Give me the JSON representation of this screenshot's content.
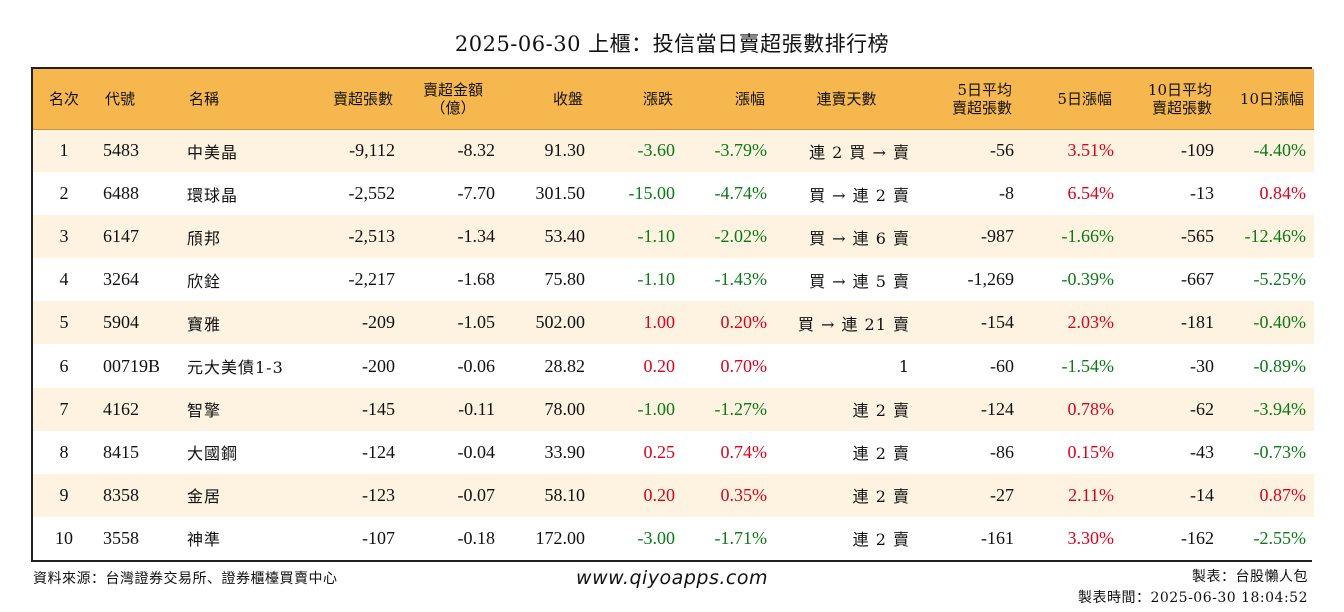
{
  "title": "2025-06-30 上櫃：投信當日賣超張數排行榜",
  "colors": {
    "header_bg": "#f5b74e",
    "row_alt_bg": "#fdf3e0",
    "up": "#e0001b",
    "down": "#0a7a17"
  },
  "headers": {
    "rank": "名次",
    "code": "代號",
    "name": "名稱",
    "net_sell": "賣超張數",
    "amount_line1": "賣超金額",
    "amount_line2": "（億）",
    "close": "收盤",
    "change": "漲跌",
    "pct": "漲幅",
    "streak": "連賣天數",
    "avg5_line1": "5日平均",
    "avg5_line2": "賣超張數",
    "pct5": "5日漲幅",
    "avg10_line1": "10日平均",
    "avg10_line2": "賣超張數",
    "pct10": "10日漲幅"
  },
  "rows": [
    {
      "rank": "1",
      "code": "5483",
      "name": "中美晶",
      "net_sell": "-9,112",
      "amount": "-8.32",
      "close": "91.30",
      "change": "-3.60",
      "pct": "-3.79%",
      "streak": "連 2 買 → 賣",
      "avg5": "-56",
      "pct5": "3.51%",
      "avg10": "-109",
      "pct10": "-4.40%"
    },
    {
      "rank": "2",
      "code": "6488",
      "name": "環球晶",
      "net_sell": "-2,552",
      "amount": "-7.70",
      "close": "301.50",
      "change": "-15.00",
      "pct": "-4.74%",
      "streak": "買 → 連 2 賣",
      "avg5": "-8",
      "pct5": "6.54%",
      "avg10": "-13",
      "pct10": "0.84%"
    },
    {
      "rank": "3",
      "code": "6147",
      "name": "頎邦",
      "net_sell": "-2,513",
      "amount": "-1.34",
      "close": "53.40",
      "change": "-1.10",
      "pct": "-2.02%",
      "streak": "買 → 連 6 賣",
      "avg5": "-987",
      "pct5": "-1.66%",
      "avg10": "-565",
      "pct10": "-12.46%"
    },
    {
      "rank": "4",
      "code": "3264",
      "name": "欣銓",
      "net_sell": "-2,217",
      "amount": "-1.68",
      "close": "75.80",
      "change": "-1.10",
      "pct": "-1.43%",
      "streak": "買 → 連 5 賣",
      "avg5": "-1,269",
      "pct5": "-0.39%",
      "avg10": "-667",
      "pct10": "-5.25%"
    },
    {
      "rank": "5",
      "code": "5904",
      "name": "寶雅",
      "net_sell": "-209",
      "amount": "-1.05",
      "close": "502.00",
      "change": "1.00",
      "pct": "0.20%",
      "streak": "買 → 連 21 賣",
      "avg5": "-154",
      "pct5": "2.03%",
      "avg10": "-181",
      "pct10": "-0.40%"
    },
    {
      "rank": "6",
      "code": "00719B",
      "name": "元大美債1-3",
      "net_sell": "-200",
      "amount": "-0.06",
      "close": "28.82",
      "change": "0.20",
      "pct": "0.70%",
      "streak": "1",
      "avg5": "-60",
      "pct5": "-1.54%",
      "avg10": "-30",
      "pct10": "-0.89%"
    },
    {
      "rank": "7",
      "code": "4162",
      "name": "智擎",
      "net_sell": "-145",
      "amount": "-0.11",
      "close": "78.00",
      "change": "-1.00",
      "pct": "-1.27%",
      "streak": "連 2 賣",
      "avg5": "-124",
      "pct5": "0.78%",
      "avg10": "-62",
      "pct10": "-3.94%"
    },
    {
      "rank": "8",
      "code": "8415",
      "name": "大國鋼",
      "net_sell": "-124",
      "amount": "-0.04",
      "close": "33.90",
      "change": "0.25",
      "pct": "0.74%",
      "streak": "連 2 賣",
      "avg5": "-86",
      "pct5": "0.15%",
      "avg10": "-43",
      "pct10": "-0.73%"
    },
    {
      "rank": "9",
      "code": "8358",
      "name": "金居",
      "net_sell": "-123",
      "amount": "-0.07",
      "close": "58.10",
      "change": "0.20",
      "pct": "0.35%",
      "streak": "連 2 賣",
      "avg5": "-27",
      "pct5": "2.11%",
      "avg10": "-14",
      "pct10": "0.87%"
    },
    {
      "rank": "10",
      "code": "3558",
      "name": "神準",
      "net_sell": "-107",
      "amount": "-0.18",
      "close": "172.00",
      "change": "-3.00",
      "pct": "-1.71%",
      "streak": "連 2 賣",
      "avg5": "-161",
      "pct5": "3.30%",
      "avg10": "-162",
      "pct10": "-2.55%"
    }
  ],
  "footer": {
    "source": "資料來源：台灣證券交易所、證券櫃檯買賣中心",
    "website": "www.qiyoapps.com",
    "maker": "製表：台股懶人包",
    "made_time": "製表時間：2025-06-30 18:04:52"
  }
}
